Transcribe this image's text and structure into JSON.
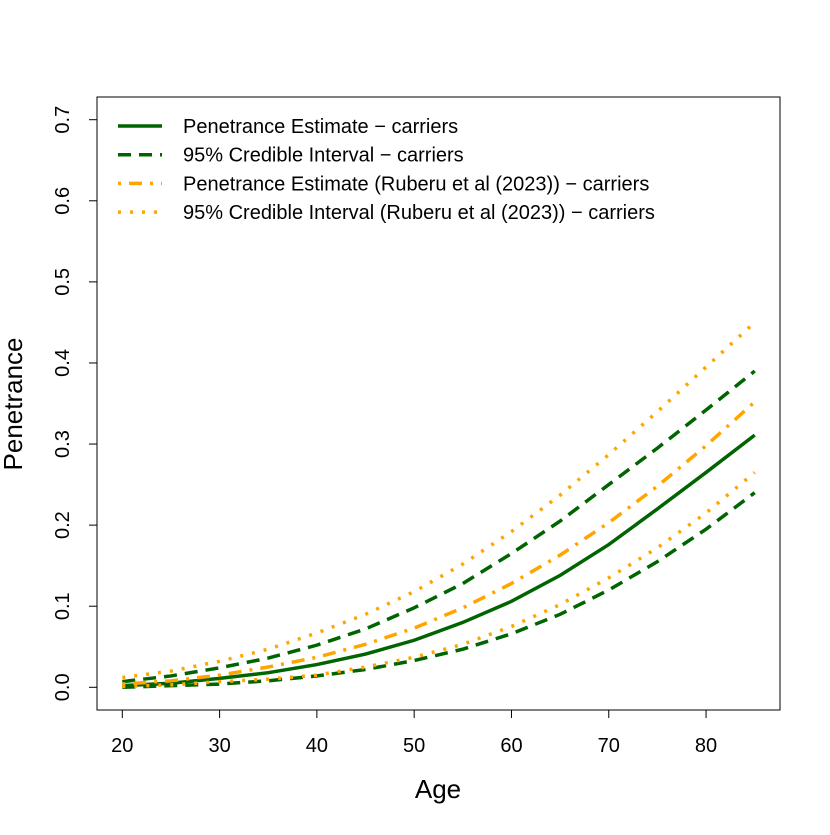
{
  "chart_data": {
    "type": "line",
    "x_label": "Age",
    "y_label": "Penetrance",
    "x": [
      20,
      25,
      30,
      35,
      40,
      45,
      50,
      55,
      60,
      65,
      70,
      75,
      80,
      85
    ],
    "xlim": [
      17.4,
      87.6
    ],
    "ylim": [
      -0.028,
      0.728
    ],
    "xticks": [
      20,
      30,
      40,
      50,
      60,
      70,
      80
    ],
    "yticks": [
      {
        "value": 0,
        "label": "0.0"
      },
      0.1,
      0.2,
      0.3,
      0.4,
      0.5,
      0.6,
      0.7
    ],
    "legend": "topleft",
    "series": [
      {
        "name": "Penetrance Estimate − carriers",
        "color": "#006400",
        "dash": "solid",
        "values": [
          0.002,
          0.005,
          0.011,
          0.018,
          0.028,
          0.041,
          0.058,
          0.08,
          0.106,
          0.138,
          0.176,
          0.22,
          0.265,
          0.311
        ]
      },
      {
        "name": "95% Credible Interval − carriers",
        "color": "#006400",
        "dash": "dashed",
        "values": [
          0.007,
          0.014,
          0.024,
          0.036,
          0.052,
          0.072,
          0.098,
          0.128,
          0.165,
          0.205,
          0.25,
          0.295,
          0.342,
          0.39
        ]
      },
      {
        "name": "Penetrance Estimate (Ruberu et al (2023)) − carriers",
        "color": "#ffa500",
        "dash": "dotdash",
        "values": [
          0.004,
          0.008,
          0.015,
          0.025,
          0.037,
          0.053,
          0.073,
          0.098,
          0.128,
          0.163,
          0.203,
          0.248,
          0.298,
          0.352
        ]
      },
      {
        "name": "95% Credible Interval (Ruberu et al (2023)) − carriers",
        "color": "#ffa500",
        "dash": "dotted",
        "values": [
          0.012,
          0.02,
          0.032,
          0.047,
          0.067,
          0.09,
          0.118,
          0.152,
          0.192,
          0.237,
          0.287,
          0.34,
          0.395,
          0.45
        ]
      },
      {
        "color": "#006400",
        "dash": "dashed",
        "values": [
          0.0,
          0.002,
          0.004,
          0.008,
          0.014,
          0.022,
          0.033,
          0.047,
          0.066,
          0.09,
          0.12,
          0.155,
          0.195,
          0.24
        ]
      },
      {
        "color": "#ffa500",
        "dash": "dotted",
        "values": [
          0.001,
          0.003,
          0.007,
          0.01,
          0.015,
          0.025,
          0.037,
          0.053,
          0.075,
          0.102,
          0.135,
          0.172,
          0.215,
          0.265
        ]
      }
    ]
  }
}
